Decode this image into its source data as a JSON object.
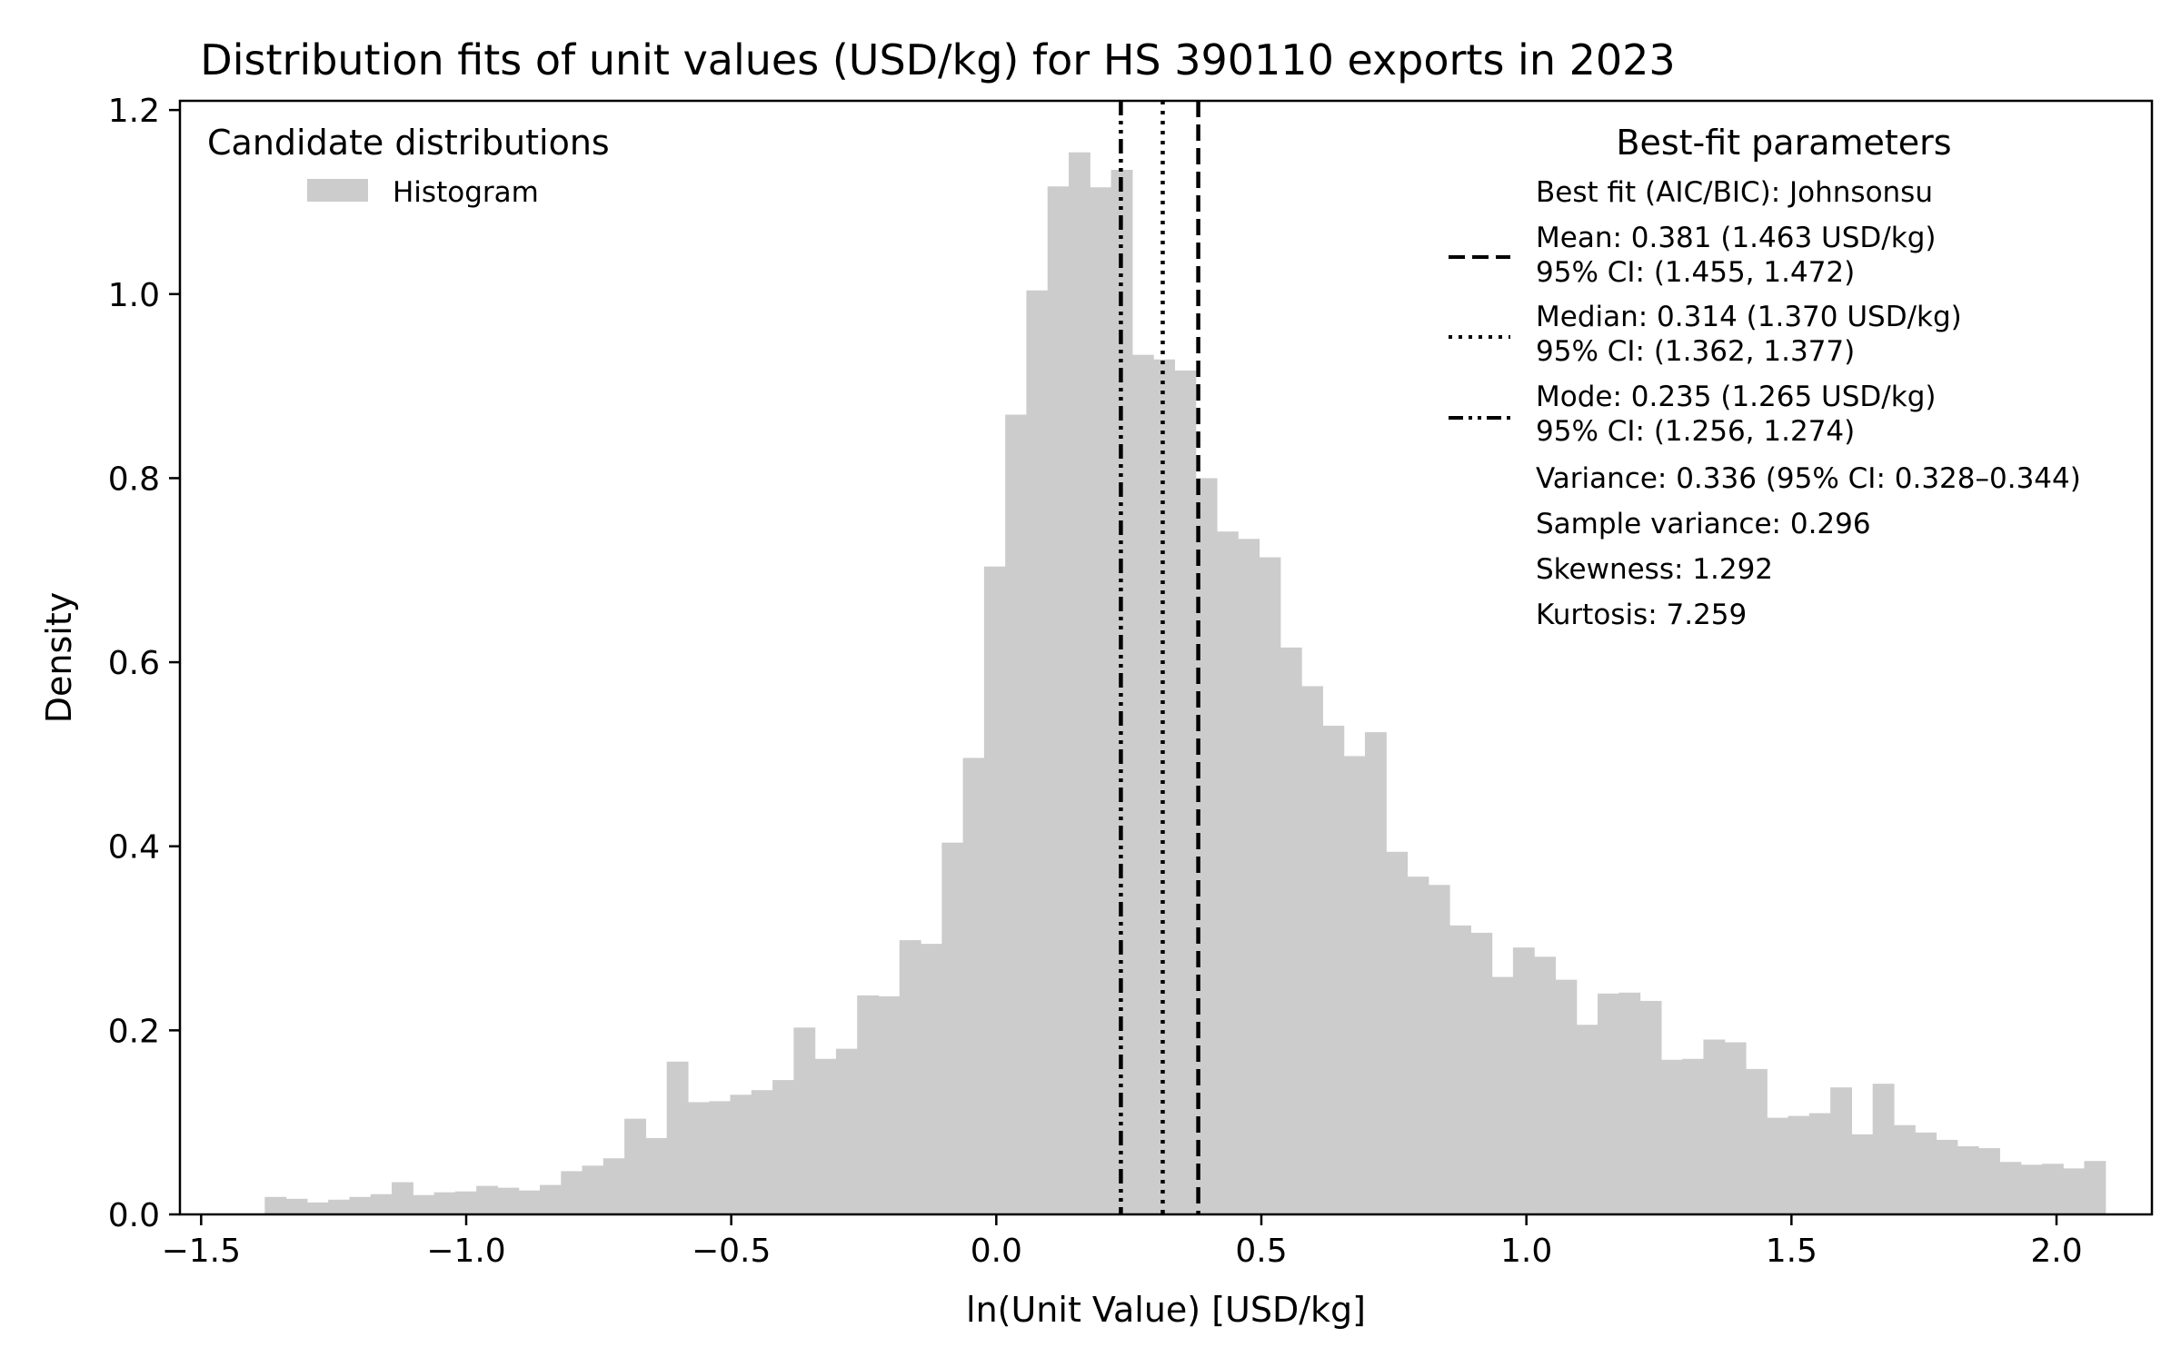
{
  "chart_data": {
    "type": "bar",
    "title": "Distribution fits of unit values (USD/kg) for HS 390110 exports in 2023",
    "xlabel": "ln(Unit Value) [USD/kg]",
    "ylabel": "Density",
    "xlim": [
      -1.54,
      2.18
    ],
    "ylim": [
      0,
      1.21
    ],
    "xticks": [
      -1.5,
      -1.0,
      -0.5,
      0.0,
      0.5,
      1.0,
      1.5,
      2.0
    ],
    "xtick_labels": [
      "−1.5",
      "−1.0",
      "−0.5",
      "0.0",
      "0.5",
      "1.0",
      "1.5",
      "2.0"
    ],
    "yticks": [
      0.0,
      0.2,
      0.4,
      0.6,
      0.8,
      1.0,
      1.2
    ],
    "ytick_labels": [
      "0.0",
      "0.2",
      "0.4",
      "0.6",
      "0.8",
      "1.0",
      "1.2"
    ],
    "grid": false,
    "histogram": {
      "name": "Histogram",
      "color": "#cccccc",
      "bin_start": -1.38,
      "bin_width": 0.03991,
      "values": [
        0.019,
        0.017,
        0.013,
        0.016,
        0.019,
        0.022,
        0.035,
        0.021,
        0.024,
        0.025,
        0.031,
        0.029,
        0.026,
        0.032,
        0.047,
        0.053,
        0.061,
        0.104,
        0.083,
        0.166,
        0.122,
        0.123,
        0.13,
        0.135,
        0.146,
        0.203,
        0.169,
        0.18,
        0.238,
        0.237,
        0.298,
        0.294,
        0.404,
        0.496,
        0.704,
        0.869,
        1.004,
        1.117,
        1.154,
        1.116,
        1.135,
        0.934,
        0.929,
        0.917,
        0.8,
        0.742,
        0.734,
        0.714,
        0.616,
        0.574,
        0.531,
        0.498,
        0.524,
        0.394,
        0.367,
        0.358,
        0.314,
        0.306,
        0.258,
        0.29,
        0.28,
        0.255,
        0.206,
        0.24,
        0.241,
        0.232,
        0.168,
        0.169,
        0.19,
        0.187,
        0.158,
        0.105,
        0.107,
        0.11,
        0.138,
        0.087,
        0.142,
        0.097,
        0.089,
        0.081,
        0.074,
        0.072,
        0.057,
        0.054,
        0.055,
        0.05,
        0.058
      ]
    },
    "vlines": [
      {
        "name": "Mean",
        "x": 0.381,
        "style": "dashed"
      },
      {
        "name": "Median",
        "x": 0.314,
        "style": "dotted"
      },
      {
        "name": "Mode",
        "x": 0.235,
        "style": "dashdot"
      }
    ],
    "legend_left": {
      "title": "Candidate distributions",
      "placement": "top-left",
      "entries": [
        "Histogram"
      ]
    },
    "legend_right": {
      "title": "Best-fit parameters",
      "placement": "top-right",
      "line1": "Best fit (AIC/BIC): Johnsonsu",
      "mean_a": "Mean: 0.381 (1.463 USD/kg)",
      "mean_b": "95% CI: (1.455, 1.472)",
      "median_a": "Median: 0.314 (1.370 USD/kg)",
      "median_b": "95% CI: (1.362, 1.377)",
      "mode_a": "Mode: 0.235 (1.265 USD/kg)",
      "mode_b": "95% CI: (1.256, 1.274)",
      "variance": "Variance: 0.336 (95% CI: 0.328–0.344)",
      "sample_variance": "Sample variance: 0.296",
      "skewness": "Skewness: 1.292",
      "kurtosis": "Kurtosis: 7.259"
    }
  }
}
